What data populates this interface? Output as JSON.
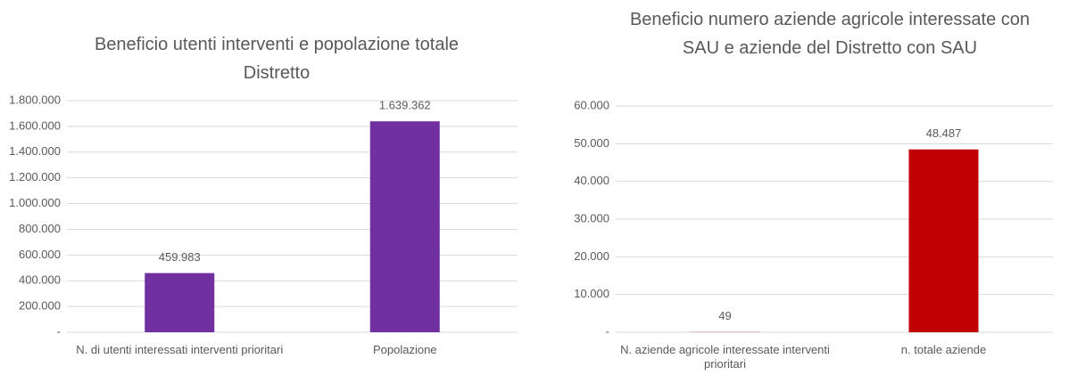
{
  "chart_data": [
    {
      "type": "bar",
      "title": "Beneficio utenti interventi e popolazione totale Distretto",
      "categories": [
        "N. di utenti interessati  interventi prioritari",
        "Popolazione"
      ],
      "values": [
        459983,
        1639362
      ],
      "value_labels": [
        "459.983",
        "1.639.362"
      ],
      "color": "#7030a0",
      "ylim": [
        0,
        1800000
      ],
      "yticks": [
        {
          "value": 0,
          "label": "-"
        },
        {
          "value": 200000,
          "label": "200.000"
        },
        {
          "value": 400000,
          "label": "400.000"
        },
        {
          "value": 600000,
          "label": "600.000"
        },
        {
          "value": 800000,
          "label": "800.000"
        },
        {
          "value": 1000000,
          "label": "1.000.000"
        },
        {
          "value": 1200000,
          "label": "1.200.000"
        },
        {
          "value": 1400000,
          "label": "1.400.000"
        },
        {
          "value": 1600000,
          "label": "1.600.000"
        },
        {
          "value": 1800000,
          "label": "1.800.000"
        }
      ],
      "grid": true
    },
    {
      "type": "bar",
      "title": "Beneficio numero aziende agricole interessate con SAU e aziende del Distretto con SAU",
      "categories": [
        "N. aziende agricole interessate interventi prioritari",
        "n. totale aziende"
      ],
      "values": [
        49,
        48487
      ],
      "value_labels": [
        "49",
        "48.487"
      ],
      "color": "#c00000",
      "ylim": [
        0,
        60000
      ],
      "yticks": [
        {
          "value": 0,
          "label": "-"
        },
        {
          "value": 10000,
          "label": "10.000"
        },
        {
          "value": 20000,
          "label": "20.000"
        },
        {
          "value": 30000,
          "label": "30.000"
        },
        {
          "value": 40000,
          "label": "40.000"
        },
        {
          "value": 50000,
          "label": "50.000"
        },
        {
          "value": 60000,
          "label": "60.000"
        }
      ],
      "grid": true
    }
  ]
}
